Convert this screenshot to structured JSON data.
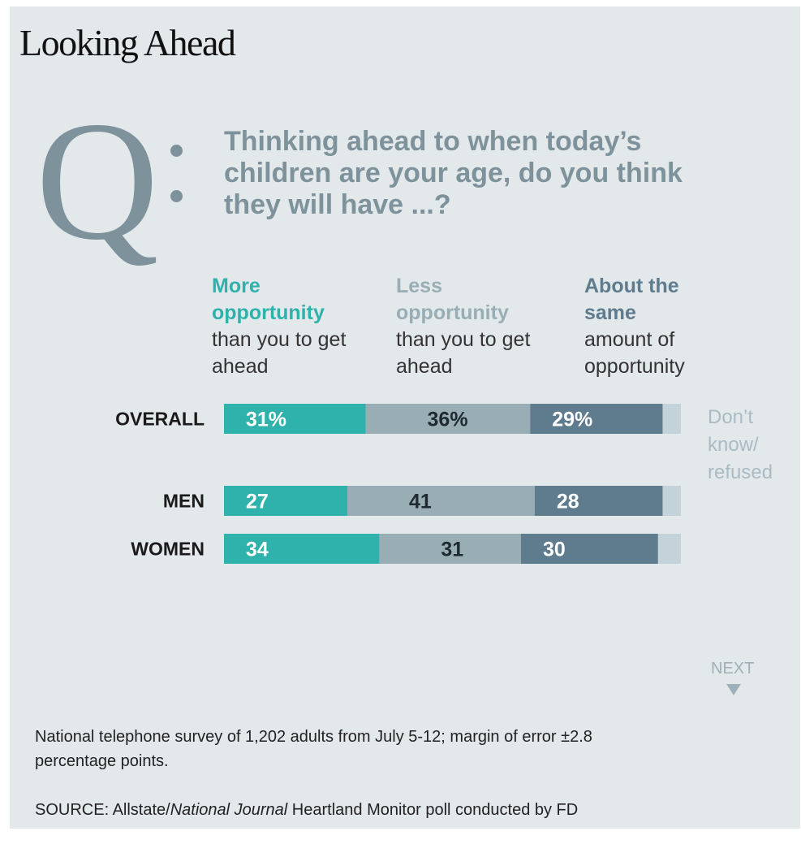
{
  "title": "Looking Ahead",
  "question_letter": "Q",
  "question": "Thinking ahead to when today’s children are your age, do you think they will have ...?",
  "categories": [
    {
      "head": "More opportunity",
      "sub": "than you to get ahead",
      "color": "#2fb1ac"
    },
    {
      "head": "Less opportunity",
      "sub": "than you to get ahead",
      "color": "#98adb4"
    },
    {
      "head": "About the same",
      "sub": "amount of opportunity",
      "color": "#5f7b8e"
    }
  ],
  "dk_color": "#c4d2d9",
  "next_label": "NEXT",
  "footnote": "National telephone survey of 1,202 adults from July 5-12; margin of error ±2.8 percentage points.",
  "source": {
    "prefix": "SOURCE: Allstate/",
    "italic": "National Journal",
    "suffix": " Heartland Monitor poll conducted by FD"
  },
  "chart_data": {
    "type": "bar",
    "stacked": true,
    "orientation": "horizontal",
    "categories": [
      "OVERALL",
      "MEN",
      "WOMEN"
    ],
    "series": [
      {
        "name": "More opportunity than you to get ahead",
        "values": [
          31,
          27,
          34
        ],
        "labels": [
          "31%",
          "27",
          "34"
        ],
        "color": "#2fb1ac"
      },
      {
        "name": "Less opportunity than you to get ahead",
        "values": [
          36,
          41,
          31
        ],
        "labels": [
          "36%",
          "41",
          "31"
        ],
        "color": "#98adb4"
      },
      {
        "name": "About the same amount of opportunity",
        "values": [
          29,
          28,
          30
        ],
        "labels": [
          "29%",
          "28",
          "30"
        ],
        "color": "#5f7b8e"
      },
      {
        "name": "Don’t know/ refused",
        "values": [
          4,
          4,
          5
        ],
        "labels": [
          "",
          "",
          ""
        ],
        "color": "#c4d2d9"
      }
    ],
    "annotation": "Don’t know/ refused",
    "xlim": [
      0,
      100
    ]
  }
}
